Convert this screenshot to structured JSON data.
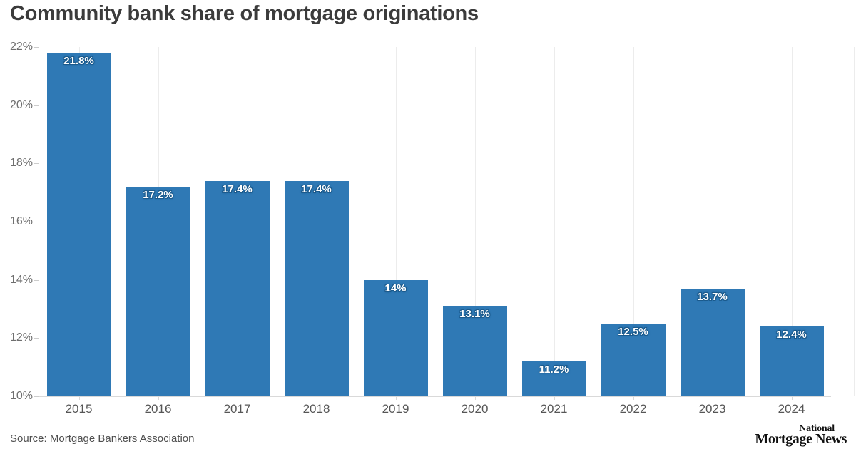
{
  "title": "Community bank share of mortgage originations",
  "footer": {
    "source": "Source: Mortgage Bankers Association",
    "logo_line1": "National",
    "logo_line2": "Mortgage News"
  },
  "chart_data": {
    "type": "bar",
    "title": "Community bank share of mortgage originations",
    "categories": [
      "2015",
      "2016",
      "2017",
      "2018",
      "2019",
      "2020",
      "2021",
      "2022",
      "2023",
      "2024"
    ],
    "values": [
      21.8,
      17.2,
      17.4,
      17.4,
      14,
      13.1,
      11.2,
      12.5,
      13.7,
      12.4
    ],
    "bar_labels": [
      "21.8%",
      "17.2%",
      "17.4%",
      "17.4%",
      "14%",
      "13.1%",
      "11.2%",
      "12.5%",
      "13.7%",
      "12.4%"
    ],
    "xlabel": "",
    "ylabel": "",
    "ylim": [
      10,
      22
    ],
    "ytick_values": [
      10,
      12,
      14,
      16,
      18,
      20,
      22
    ],
    "ytick_labels": [
      "10%",
      "12%",
      "14%",
      "16%",
      "18%",
      "20%",
      "22%"
    ],
    "grid": "vertical-only",
    "legend": "none",
    "source": "Source: Mortgage Bankers Association",
    "colors": {
      "bar": "#2f79b5",
      "bar_label_text": "#ffffff",
      "bar_label_outline": "#1b5a8c",
      "gridline": "#ececec",
      "axis_line": "#d9d9d9",
      "tick": "#cccccc",
      "title_text": "#3b3b3b",
      "y_axis_label": "#6e6e6e",
      "category_label": "#565656",
      "source_text": "#4f4f4f",
      "logo_text": "#111111",
      "background": "#ffffff"
    }
  }
}
